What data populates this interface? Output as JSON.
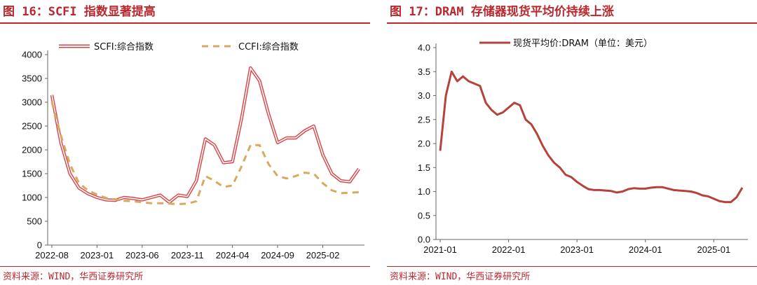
{
  "charts": {
    "left": {
      "title": "图 16：SCFI 指数显著提高",
      "source": "资料来源：WIND，华西证券研究所"
    },
    "right": {
      "title": "图 17：DRAM 存储器现货平均价持续上涨",
      "source": "资料来源：WIND，华西证券研究所"
    }
  },
  "chart_data": [
    {
      "type": "line",
      "title": "图 16：SCFI 指数显著提高",
      "ylim": [
        0,
        4000
      ],
      "yticks": [
        "0",
        "500",
        "1000",
        "1500",
        "2000",
        "2500",
        "3000",
        "3500",
        "4000"
      ],
      "xticks": [
        "2022-08",
        "2023-01",
        "2023-06",
        "2023-11",
        "2024-04",
        "2024-09",
        "2025-02"
      ],
      "legend_position": "top",
      "grid": false,
      "colors": {
        "SCFI": "#d9464b",
        "CCFI": "#d9a95f"
      },
      "x": [
        "2022-08",
        "2022-09",
        "2022-10",
        "2022-11",
        "2022-12",
        "2023-01",
        "2023-02",
        "2023-03",
        "2023-04",
        "2023-05",
        "2023-06",
        "2023-07",
        "2023-08",
        "2023-09",
        "2023-10",
        "2023-11",
        "2023-12",
        "2024-01",
        "2024-02",
        "2024-03",
        "2024-04",
        "2024-05",
        "2024-06",
        "2024-07",
        "2024-08",
        "2024-09",
        "2024-10",
        "2024-11",
        "2024-12",
        "2025-01",
        "2025-02",
        "2025-03",
        "2025-04",
        "2025-05",
        "2025-06"
      ],
      "series": [
        {
          "name": "SCFI:综合指数",
          "style": "double-line",
          "values": [
            3150,
            2150,
            1500,
            1200,
            1080,
            1000,
            950,
            940,
            1000,
            980,
            950,
            1000,
            1050,
            900,
            1050,
            1020,
            1350,
            2230,
            2100,
            1730,
            1750,
            2650,
            3720,
            3450,
            2750,
            2150,
            2250,
            2250,
            2400,
            2500,
            1900,
            1500,
            1350,
            1330,
            1600
          ]
        },
        {
          "name": "CCFI:综合指数",
          "style": "dashed",
          "values": [
            3000,
            2300,
            1700,
            1300,
            1150,
            1060,
            990,
            960,
            930,
            920,
            900,
            880,
            880,
            870,
            860,
            870,
            920,
            1450,
            1350,
            1220,
            1250,
            1650,
            2100,
            2100,
            1700,
            1450,
            1400,
            1450,
            1520,
            1500,
            1300,
            1150,
            1090,
            1100,
            1110
          ]
        }
      ]
    },
    {
      "type": "line",
      "title": "图 17：DRAM 存储器现货平均价持续上涨",
      "ylim": [
        0,
        4.0
      ],
      "yticks": [
        "0.0",
        "0.5",
        "1.0",
        "1.5",
        "2.0",
        "2.5",
        "3.0",
        "3.5",
        "4.0"
      ],
      "xticks": [
        "2021-01",
        "2022-01",
        "2023-01",
        "2024-01",
        "2025-01"
      ],
      "legend_position": "top",
      "grid": false,
      "colors": {
        "DRAM": "#b5433b"
      },
      "x": [
        "2021-01",
        "2021-02",
        "2021-03",
        "2021-04",
        "2021-05",
        "2021-06",
        "2021-07",
        "2021-08",
        "2021-09",
        "2021-10",
        "2021-11",
        "2021-12",
        "2022-01",
        "2022-02",
        "2022-03",
        "2022-04",
        "2022-05",
        "2022-06",
        "2022-07",
        "2022-08",
        "2022-09",
        "2022-10",
        "2022-11",
        "2022-12",
        "2023-01",
        "2023-02",
        "2023-03",
        "2023-04",
        "2023-05",
        "2023-06",
        "2023-07",
        "2023-08",
        "2023-09",
        "2023-10",
        "2023-11",
        "2023-12",
        "2024-01",
        "2024-02",
        "2024-03",
        "2024-04",
        "2024-05",
        "2024-06",
        "2024-07",
        "2024-08",
        "2024-09",
        "2024-10",
        "2024-11",
        "2024-12",
        "2025-01",
        "2025-02",
        "2025-03",
        "2025-04",
        "2025-05",
        "2025-06"
      ],
      "series": [
        {
          "name": "现货平均价:DRAM（单位：美元）",
          "values": [
            1.85,
            3.0,
            3.5,
            3.3,
            3.4,
            3.3,
            3.25,
            3.2,
            2.85,
            2.7,
            2.6,
            2.65,
            2.75,
            2.85,
            2.8,
            2.5,
            2.4,
            2.2,
            1.95,
            1.75,
            1.6,
            1.5,
            1.35,
            1.3,
            1.2,
            1.12,
            1.05,
            1.03,
            1.03,
            1.02,
            1.01,
            0.98,
            1.0,
            1.05,
            1.07,
            1.06,
            1.06,
            1.08,
            1.09,
            1.09,
            1.06,
            1.03,
            1.02,
            1.01,
            1.0,
            0.97,
            0.92,
            0.9,
            0.85,
            0.8,
            0.78,
            0.78,
            0.88,
            1.08
          ]
        }
      ]
    }
  ]
}
